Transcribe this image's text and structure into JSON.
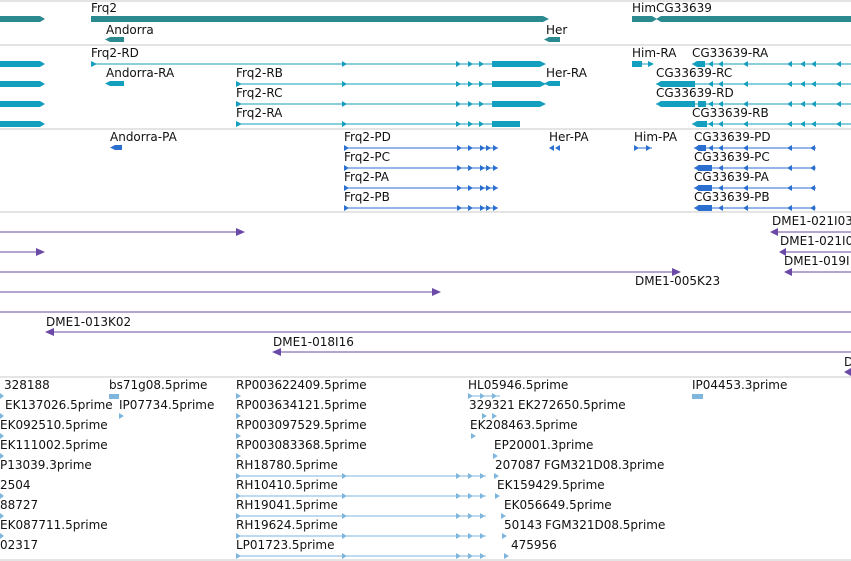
{
  "colors": {
    "gene": "#2a8a8f",
    "mrna": "#139fbd",
    "cds": "#2b6fd1",
    "clone": "#6a4aa6",
    "est": "#7fb6dd",
    "separator": "#c8c8c8"
  },
  "genes_track": {
    "labels": [
      "Frq2",
      "Andorra",
      "Her",
      "HimCG33639"
    ]
  },
  "transcripts_track": {
    "labels": [
      "Frq2-RD",
      "Andorra-RA",
      "Frq2-RB",
      "Frq2-RC",
      "Frq2-RA",
      "Her-RA",
      "Him-RA",
      "CG33639-RA",
      "CG33639-RC",
      "CG33639-RD",
      "CG33639-RB"
    ]
  },
  "cds_track": {
    "labels": [
      "Andorra-PA",
      "Frq2-PD",
      "Frq2-PC",
      "Frq2-PA",
      "Frq2-PB",
      "Her-PA",
      "Him-PA",
      "CG33639-PD",
      "CG33639-PC",
      "CG33639-PA",
      "CG33639-PB"
    ]
  },
  "clones_track": {
    "labels": [
      "DME1-021I03",
      "DME1-021I0",
      "DME1-019I",
      "DME1-005K23",
      "DME1-013K02",
      "DME1-018I16",
      "D"
    ]
  },
  "est_track": {
    "labels": [
      "328188",
      "bs71g08.5prime",
      "RP003622409.5prime",
      "HL05946.5prime",
      "IP04453.3prime",
      "EK137026.5prime",
      "IP07734.5prime",
      "RP003634121.5prime",
      "329321",
      "EK272650.5prime",
      "EK092510.5prime",
      "RP003097529.5prime",
      "EK208463.5prime",
      "EK111002.5prime",
      "RP003083368.5prime",
      "EP20001.3prime",
      "P13039.3prime",
      "RH18780.5prime",
      "207087",
      "FGM321D08.3prime",
      "2504",
      "RH10410.5prime",
      "EK159429.5prime",
      "88727",
      "RH19041.5prime",
      "EK056649.5prime",
      "EK087711.5prime",
      "RH19624.5prime",
      "50143",
      "FGM321D08.5prime",
      "02317",
      "LP01723.5prime",
      "475956"
    ]
  }
}
